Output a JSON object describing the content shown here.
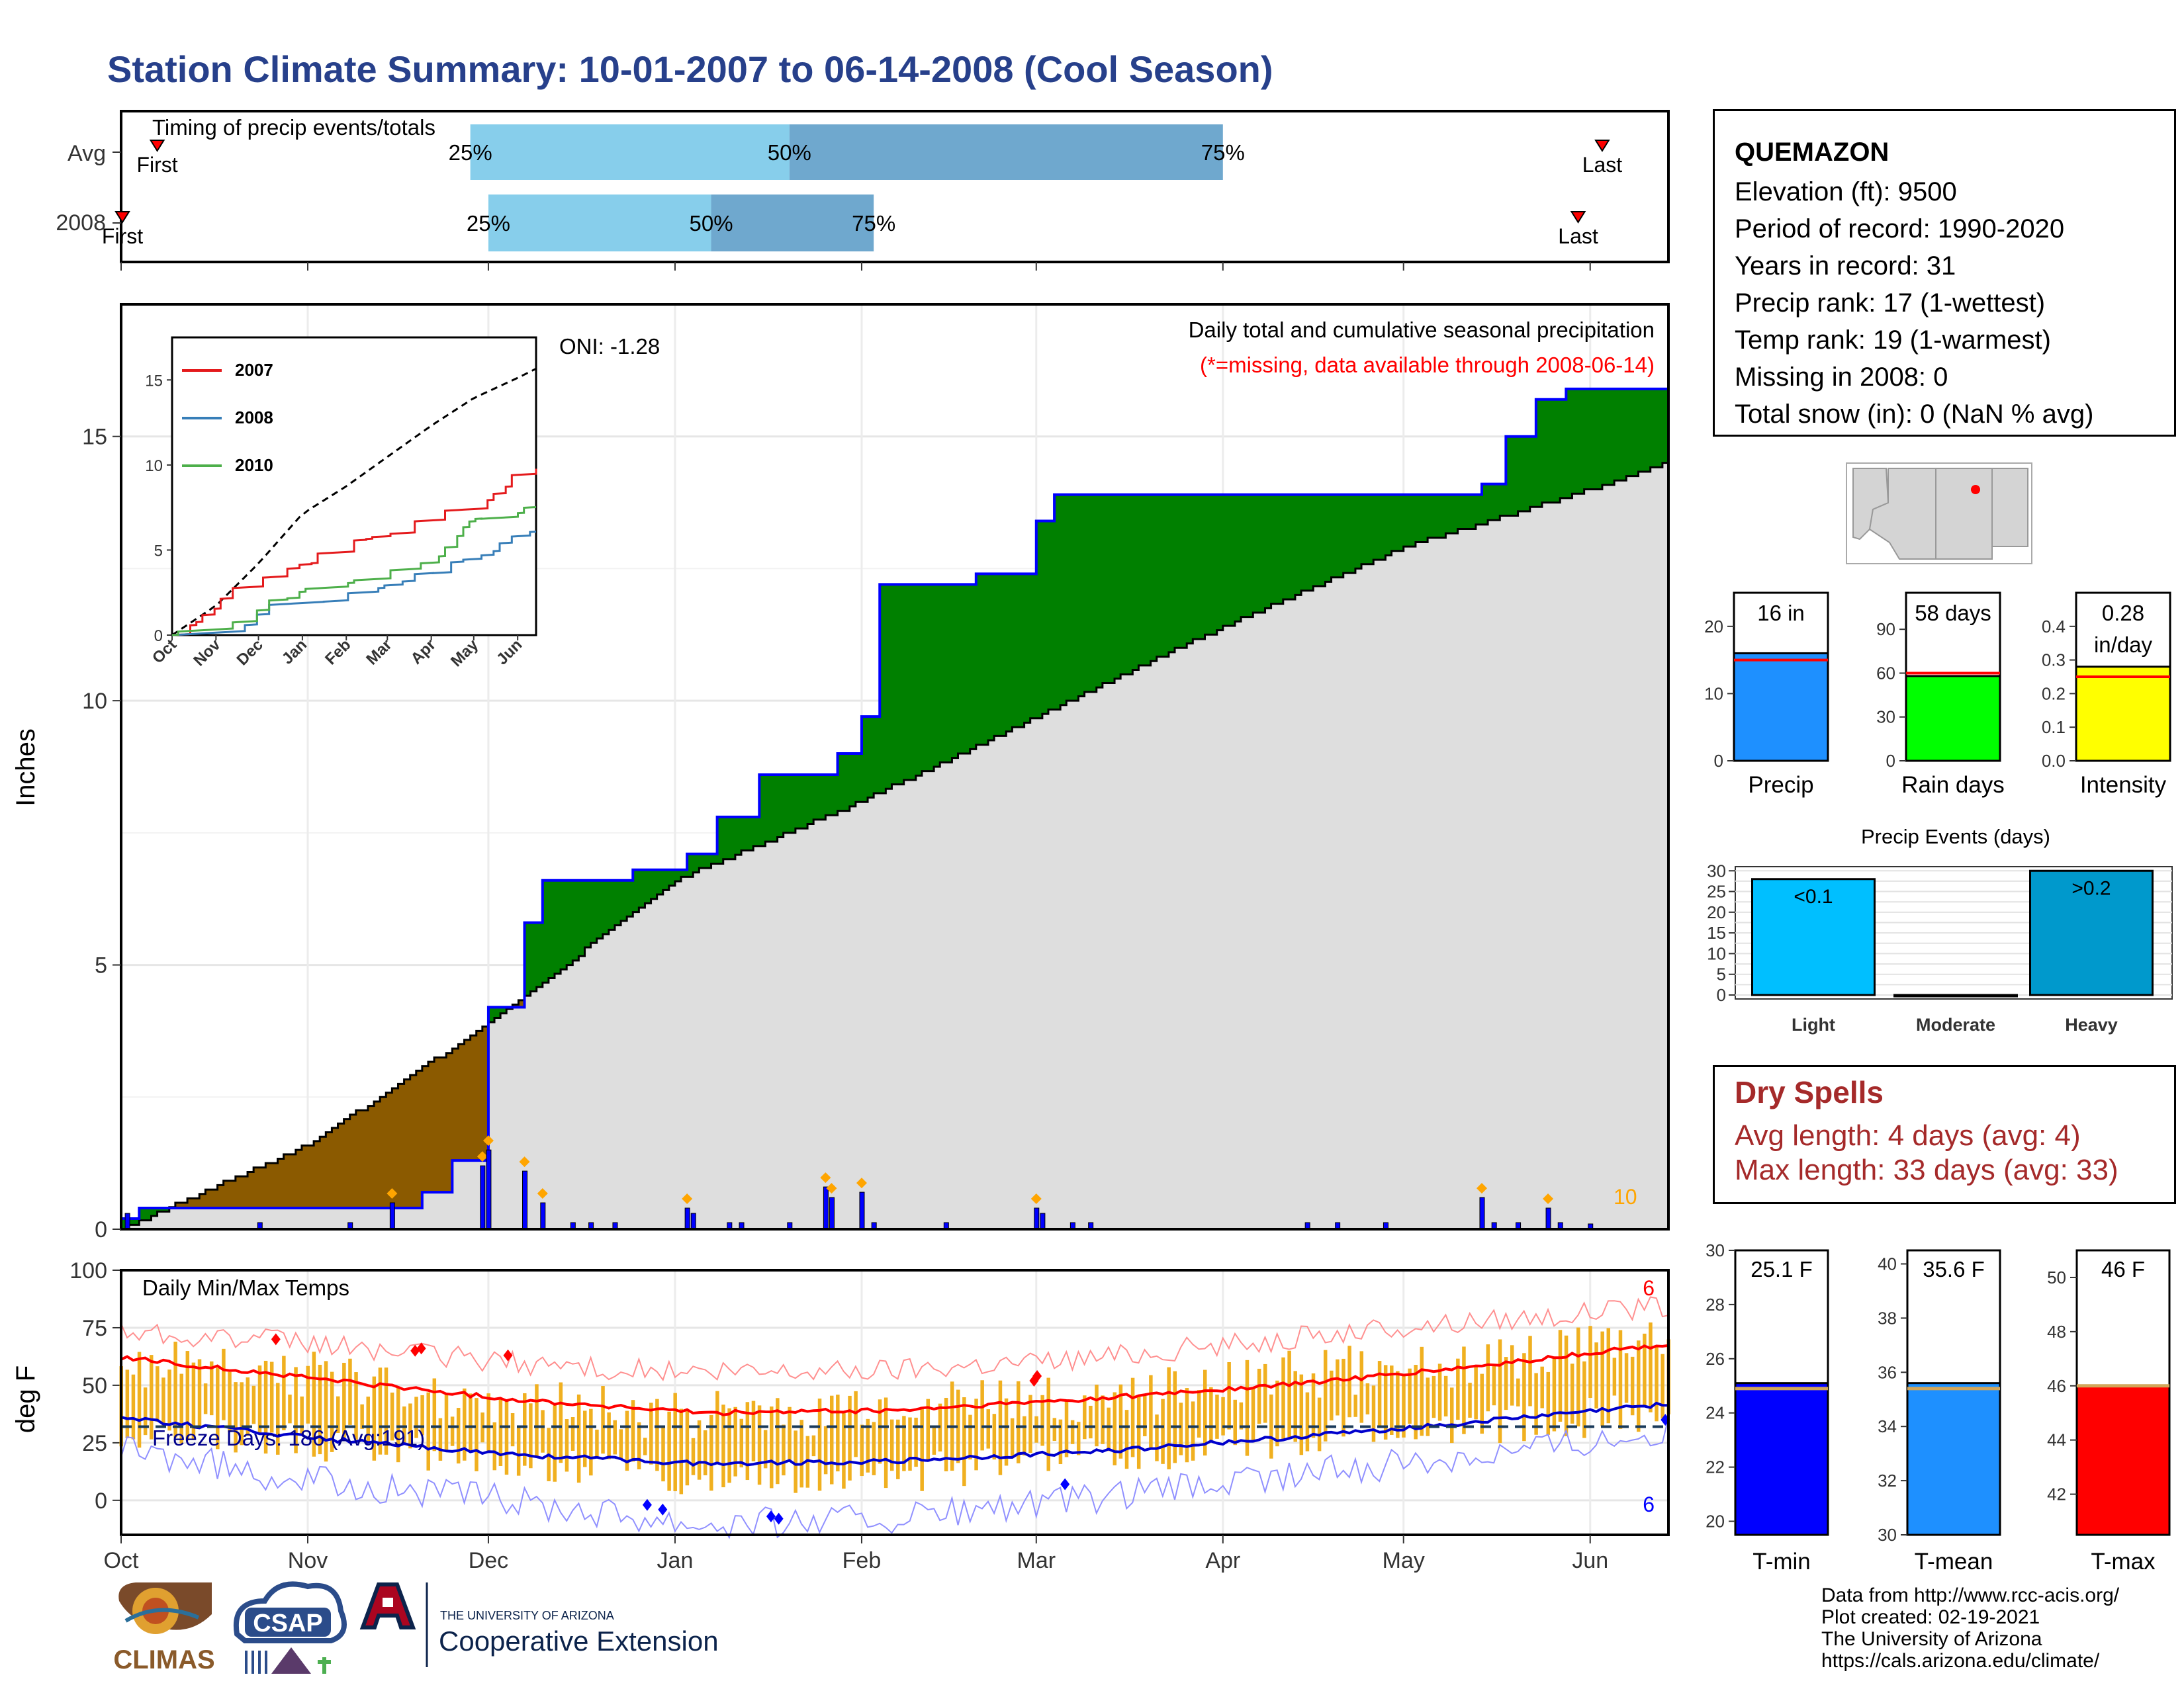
{
  "title": "Station Climate Summary: 10-01-2007 to 06-14-2008 (Cool Season)",
  "timing": {
    "title": "Timing of precip events/totals",
    "rows": [
      {
        "label": "Avg",
        "first": "First",
        "last": "Last",
        "p25": "25%",
        "p50": "50%",
        "p75": "75%",
        "p25_date": "2007-11-28",
        "p50_date": "2008-01-20",
        "p75_date": "2008-04-01",
        "first_date": "2007-10-07",
        "last_date": "2008-06-03"
      },
      {
        "label": "2008",
        "first": "First",
        "last": "Last",
        "p25": "25%",
        "p50": "50%",
        "p75": "75%",
        "p25_date": "2007-12-01",
        "p50_date": "2008-01-07",
        "p75_date": "2008-02-03",
        "first_date": "2007-10-01",
        "last_date": "2008-05-30"
      }
    ]
  },
  "precip_chart": {
    "ylabel": "Inches",
    "yticks": [
      "0",
      "5",
      "10",
      "15"
    ],
    "annot1": "Daily total and cumulative seasonal precipitation",
    "annot2": "(*=missing, data available through 2008-06-14)",
    "oni": "ONI: -1.28",
    "corner": "10",
    "colors": {
      "above": "#008000",
      "below": "#8b5a00",
      "avg": "#dedede",
      "line": "#0000ff",
      "bar": "#0000ff",
      "dot": "#ffa500"
    }
  },
  "inset": {
    "yticks": [
      "0",
      "5",
      "10",
      "15"
    ],
    "xticks": [
      "Oct",
      "Nov",
      "Dec",
      "Jan",
      "Feb",
      "Mar",
      "Apr",
      "May",
      "Jun"
    ],
    "legend": [
      {
        "name": "2007",
        "color": "#e41a1c"
      },
      {
        "name": "2008",
        "color": "#377eb8"
      },
      {
        "name": "2010",
        "color": "#4daf4a"
      }
    ]
  },
  "temp_chart": {
    "ylabel": "deg F",
    "title": "Daily Min/Max Temps",
    "freeze": "Freeze Days: 186 (Avg:191)",
    "max_count": "6",
    "min_count": "6",
    "yticks": [
      "0",
      "25",
      "50",
      "75",
      "100"
    ],
    "freeze_line": 32
  },
  "months": [
    "Oct",
    "Nov",
    "Dec",
    "Jan",
    "Feb",
    "Mar",
    "Apr",
    "May",
    "Jun"
  ],
  "info": {
    "station": "QUEMAZON",
    "elevation": "Elevation (ft): 9500",
    "period": "Period of record: 1990-2020",
    "years": "Years in record: 31",
    "precip_rank": "Precip rank: 17 (1-wettest)",
    "temp_rank": "Temp rank: 19 (1-warmest)",
    "missing": "Missing in 2008: 0",
    "snow": "Total snow (in): 0 (NaN % avg)"
  },
  "mini_bars": [
    {
      "label": "Precip",
      "value_label": "16 in",
      "value": 16,
      "avg": 15,
      "max": 25,
      "ticks": [
        "0",
        "10",
        "20"
      ],
      "color": "#1e90ff"
    },
    {
      "label": "Rain days",
      "value_label": "58 days",
      "value": 58,
      "avg": 60,
      "max": 115,
      "ticks": [
        "0",
        "30",
        "60",
        "90"
      ],
      "color": "#00ff00"
    },
    {
      "label": "Intensity",
      "value_label": "0.28 in/day",
      "value": 0.28,
      "avg": 0.25,
      "max": 0.5,
      "ticks": [
        "0.0",
        "0.1",
        "0.2",
        "0.3",
        "0.4"
      ],
      "color": "#ffff00"
    }
  ],
  "events": {
    "title": "Precip Events (days)",
    "ticks": [
      "0",
      "5",
      "10",
      "15",
      "20",
      "25",
      "30"
    ],
    "bars": [
      {
        "category": "Light",
        "label": "<0.1",
        "value": 28,
        "color": "#00bfff"
      },
      {
        "category": "Moderate",
        "label": "",
        "value": 0,
        "color": "#00bfff"
      },
      {
        "category": "Heavy",
        "label": ">0.2",
        "value": 30,
        "color": "#0099cc"
      }
    ]
  },
  "dry_spells": {
    "title": "Dry Spells",
    "avg": "Avg length: 4 days (avg: 4)",
    "max": "Max length: 33 days (avg: 33)"
  },
  "temp_bars": [
    {
      "label": "T-min",
      "value_label": "25.1 F",
      "value": 25.1,
      "avg": 24.9,
      "min": 19.5,
      "max": 30,
      "ticks": [
        "20",
        "22",
        "24",
        "26",
        "28",
        "30"
      ],
      "color": "#0000ff"
    },
    {
      "label": "T-mean",
      "value_label": "35.6 F",
      "value": 35.6,
      "avg": 35.4,
      "min": 30,
      "max": 40.5,
      "ticks": [
        "30",
        "32",
        "34",
        "36",
        "38",
        "40"
      ],
      "color": "#1e90ff"
    },
    {
      "label": "T-max",
      "value_label": "46 F",
      "value": 46,
      "avg": 46,
      "min": 40.5,
      "max": 51,
      "ticks": [
        "42",
        "44",
        "46",
        "48",
        "50"
      ],
      "color": "#ff0000"
    }
  ],
  "credits": [
    "Data from http://www.rcc-acis.org/",
    "Plot created: 02-19-2021",
    "The University of Arizona",
    "https://cals.arizona.edu/climate/"
  ],
  "logos": {
    "climas": "CLIMAS",
    "csap": "CSAP",
    "ua_small": "THE UNIVERSITY OF ARIZONA",
    "ua_big": "Cooperative Extension"
  },
  "chart_data": [
    {
      "type": "area",
      "title": "Daily total and cumulative seasonal precipitation",
      "ylabel": "Inches",
      "ylim": [
        0,
        17.5
      ],
      "x_range": [
        "2007-10-01",
        "2008-06-14"
      ],
      "series": [
        {
          "name": "2008",
          "points": [
            [
              "2007-10-01",
              0.2
            ],
            [
              "2007-10-04",
              0.4
            ],
            [
              "2007-11-20",
              0.7
            ],
            [
              "2007-11-25",
              1.3
            ],
            [
              "2007-12-01",
              4.2
            ],
            [
              "2007-12-07",
              5.8
            ],
            [
              "2007-12-10",
              6.6
            ],
            [
              "2007-12-25",
              6.8
            ],
            [
              "2008-01-03",
              7.1
            ],
            [
              "2008-01-08",
              7.8
            ],
            [
              "2008-01-15",
              8.6
            ],
            [
              "2008-01-28",
              9.0
            ],
            [
              "2008-02-01",
              9.7
            ],
            [
              "2008-02-04",
              12.2
            ],
            [
              "2008-02-20",
              12.4
            ],
            [
              "2008-03-01",
              13.4
            ],
            [
              "2008-03-04",
              13.9
            ],
            [
              "2008-04-30",
              13.9
            ],
            [
              "2008-05-14",
              14.1
            ],
            [
              "2008-05-18",
              15.0
            ],
            [
              "2008-05-23",
              15.7
            ],
            [
              "2008-05-28",
              15.9
            ],
            [
              "2008-06-14",
              16.0
            ]
          ]
        },
        {
          "name": "Avg",
          "points": [
            [
              "2007-10-01",
              0
            ],
            [
              "2007-11-01",
              1.6
            ],
            [
              "2007-12-01",
              3.9
            ],
            [
              "2008-01-01",
              6.6
            ],
            [
              "2008-02-01",
              8.1
            ],
            [
              "2008-03-01",
              9.7
            ],
            [
              "2008-04-01",
              11.4
            ],
            [
              "2008-05-01",
              12.9
            ],
            [
              "2008-06-01",
              14.0
            ],
            [
              "2008-06-14",
              14.5
            ]
          ]
        }
      ],
      "daily": [
        [
          "2007-10-02",
          0.3
        ],
        [
          "2007-11-15",
          0.5
        ],
        [
          "2007-11-30",
          1.2
        ],
        [
          "2007-12-01",
          1.5
        ],
        [
          "2007-12-07",
          1.1
        ],
        [
          "2007-12-10",
          0.5
        ],
        [
          "2008-01-03",
          0.4
        ],
        [
          "2008-01-04",
          0.3
        ],
        [
          "2008-01-26",
          0.8
        ],
        [
          "2008-01-27",
          0.6
        ],
        [
          "2008-02-01",
          0.7
        ],
        [
          "2008-03-01",
          0.4
        ],
        [
          "2008-03-02",
          0.3
        ],
        [
          "2008-05-14",
          0.6
        ],
        [
          "2008-05-25",
          0.4
        ],
        [
          "2008-06-01",
          0.1
        ]
      ]
    },
    {
      "type": "line",
      "title": "Daily Min/Max Temps",
      "ylabel": "deg F",
      "ylim": [
        -15,
        100
      ],
      "categories": [
        "Oct",
        "Nov",
        "Dec",
        "Jan",
        "Feb",
        "Mar",
        "Apr",
        "May",
        "Jun"
      ],
      "series": [
        {
          "name": "Avg max",
          "values": [
            62,
            53,
            44,
            38,
            39,
            44,
            50,
            58,
            68
          ]
        },
        {
          "name": "Avg min",
          "values": [
            36,
            27,
            20,
            16,
            17,
            21,
            27,
            34,
            42
          ]
        },
        {
          "name": "Record max",
          "values": [
            74,
            68,
            60,
            55,
            57,
            62,
            70,
            78,
            84
          ]
        },
        {
          "name": "Record min",
          "values": [
            22,
            8,
            0,
            -10,
            -8,
            0,
            10,
            20,
            30
          ]
        }
      ],
      "daily_range": {
        "max": [
          58,
          52,
          40,
          34,
          38,
          42,
          52,
          58,
          66
        ],
        "min": [
          34,
          28,
          18,
          12,
          14,
          20,
          28,
          34,
          40
        ]
      }
    },
    {
      "type": "bar",
      "title": "Precip Events (days)",
      "categories": [
        "Light",
        "Moderate",
        "Heavy"
      ],
      "values": [
        28,
        0,
        30
      ]
    },
    {
      "type": "bar",
      "categories": [
        "Precip",
        "Rain days",
        "Intensity"
      ],
      "values": [
        16,
        58,
        0.28
      ]
    },
    {
      "type": "bar",
      "categories": [
        "T-min",
        "T-mean",
        "T-max"
      ],
      "values": [
        25.1,
        35.6,
        46
      ]
    }
  ]
}
